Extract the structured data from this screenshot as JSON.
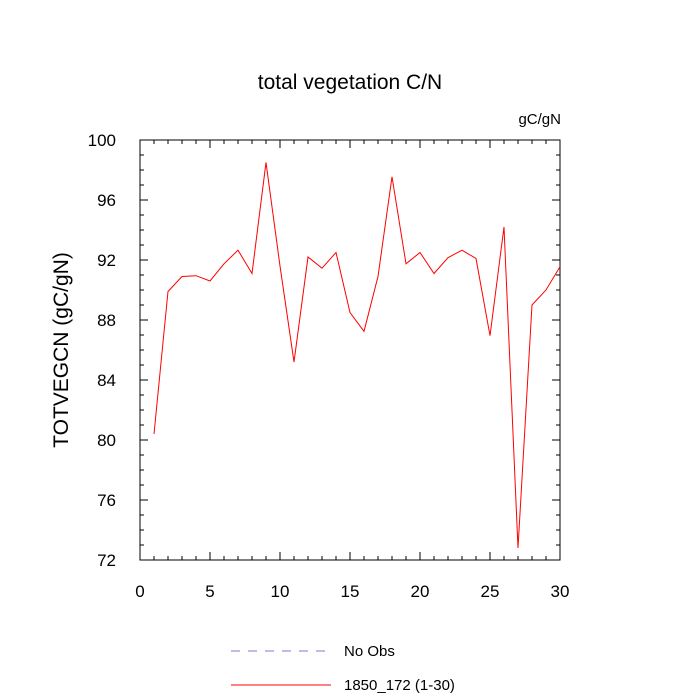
{
  "chart_data": {
    "type": "line",
    "title": "total vegetation C/N",
    "units_label": "gC/gN",
    "ylabel": "TOTVEGCN  (gC/gN)",
    "xlabel": "",
    "xlim": [
      0,
      30
    ],
    "ylim": [
      72,
      100
    ],
    "x_ticks": [
      0,
      5,
      10,
      15,
      20,
      25,
      30
    ],
    "y_ticks": [
      72,
      76,
      80,
      84,
      88,
      92,
      96,
      100
    ],
    "grid": false,
    "legend_position": "bottom",
    "series": [
      {
        "name": "1850_172 (1-30)",
        "color": "#ff0000",
        "style": "solid",
        "x": [
          1,
          2,
          3,
          4,
          5,
          6,
          7,
          8,
          9,
          10,
          11,
          12,
          13,
          14,
          15,
          16,
          17,
          18,
          19,
          20,
          21,
          22,
          23,
          24,
          25,
          26,
          27,
          28,
          29,
          30
        ],
        "values": [
          80.4,
          89.9,
          90.9,
          90.95,
          90.6,
          91.75,
          92.65,
          91.1,
          98.5,
          91.6,
          85.2,
          92.2,
          91.45,
          92.5,
          88.5,
          87.25,
          90.9,
          97.55,
          91.75,
          92.5,
          91.1,
          92.15,
          92.65,
          92.1,
          86.95,
          94.2,
          72.8,
          89.0,
          90.0,
          91.55
        ]
      }
    ],
    "legend": [
      {
        "label": "No Obs",
        "color": "#7b7bd6",
        "style": "dashed"
      },
      {
        "label": "1850_172 (1-30)",
        "color": "#ff0000",
        "style": "solid"
      }
    ]
  }
}
